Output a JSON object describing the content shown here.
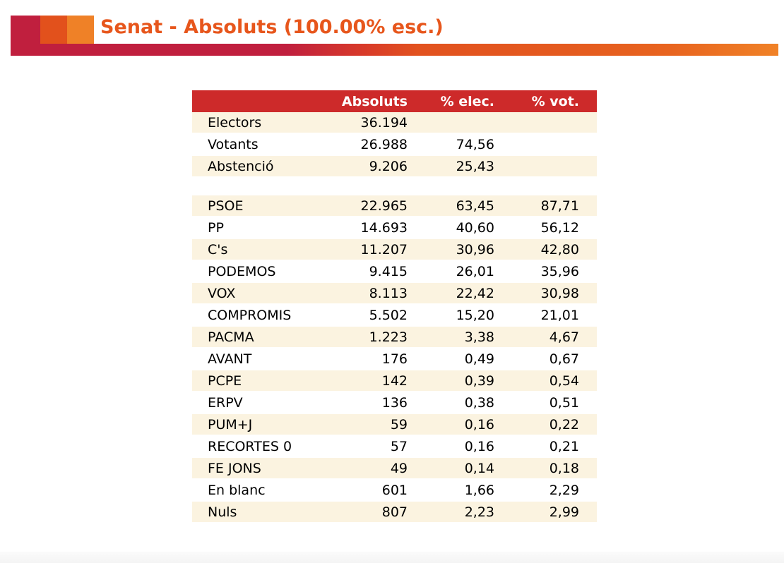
{
  "header": {
    "title": "Senat - Absoluts (100.00% esc.)"
  },
  "colors": {
    "brand_crimson": "#c01f3e",
    "brand_orange_dark": "#e2511c",
    "brand_orange_light": "#ef8127",
    "title_orange": "#e7561c",
    "table_header_red": "#cd2a2a",
    "row_cream": "#fbf3e0",
    "row_white": "#ffffff"
  },
  "table": {
    "columns": [
      "",
      "Absoluts",
      "% elec.",
      "% vot."
    ],
    "summary_rows": [
      {
        "label": "Electors",
        "absoluts": "36.194",
        "pct_elec": "",
        "pct_vot": ""
      },
      {
        "label": "Votants",
        "absoluts": "26.988",
        "pct_elec": "74,56",
        "pct_vot": ""
      },
      {
        "label": "Abstenció",
        "absoluts": "9.206",
        "pct_elec": "25,43",
        "pct_vot": ""
      }
    ],
    "party_rows": [
      {
        "label": "PSOE",
        "absoluts": "22.965",
        "pct_elec": "63,45",
        "pct_vot": "87,71"
      },
      {
        "label": "PP",
        "absoluts": "14.693",
        "pct_elec": "40,60",
        "pct_vot": "56,12"
      },
      {
        "label": "C's",
        "absoluts": "11.207",
        "pct_elec": "30,96",
        "pct_vot": "42,80"
      },
      {
        "label": "PODEMOS",
        "absoluts": "9.415",
        "pct_elec": "26,01",
        "pct_vot": "35,96"
      },
      {
        "label": "VOX",
        "absoluts": "8.113",
        "pct_elec": "22,42",
        "pct_vot": "30,98"
      },
      {
        "label": "COMPROMIS",
        "absoluts": "5.502",
        "pct_elec": "15,20",
        "pct_vot": "21,01"
      },
      {
        "label": "PACMA",
        "absoluts": "1.223",
        "pct_elec": "3,38",
        "pct_vot": "4,67"
      },
      {
        "label": "AVANT",
        "absoluts": "176",
        "pct_elec": "0,49",
        "pct_vot": "0,67"
      },
      {
        "label": "PCPE",
        "absoluts": "142",
        "pct_elec": "0,39",
        "pct_vot": "0,54"
      },
      {
        "label": "ERPV",
        "absoluts": "136",
        "pct_elec": "0,38",
        "pct_vot": "0,51"
      },
      {
        "label": "PUM+J",
        "absoluts": "59",
        "pct_elec": "0,16",
        "pct_vot": "0,22"
      },
      {
        "label": "RECORTES 0",
        "absoluts": "57",
        "pct_elec": "0,16",
        "pct_vot": "0,21"
      },
      {
        "label": "FE JONS",
        "absoluts": "49",
        "pct_elec": "0,14",
        "pct_vot": "0,18"
      },
      {
        "label": "En blanc",
        "absoluts": "601",
        "pct_elec": "1,66",
        "pct_vot": "2,29"
      },
      {
        "label": "Nuls",
        "absoluts": "807",
        "pct_elec": "2,23",
        "pct_vot": "2,99"
      }
    ]
  }
}
